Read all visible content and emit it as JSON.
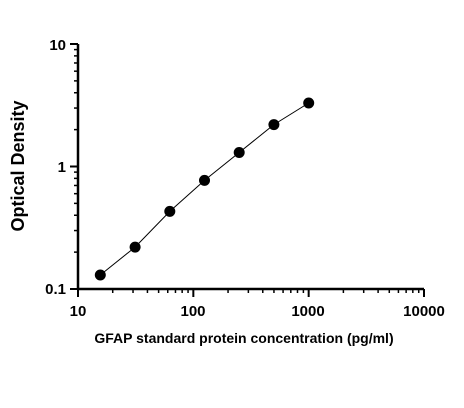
{
  "chart_data": {
    "type": "scatter",
    "title": "",
    "xlabel": "GFAP standard protein concentration (pg/ml)",
    "ylabel": "Optical Density",
    "x_scale": "log",
    "y_scale": "log",
    "xlim": [
      10,
      10000
    ],
    "ylim": [
      0.1,
      10
    ],
    "x_ticks": [
      "10",
      "100",
      "1000",
      "10000"
    ],
    "y_ticks": [
      "0.1",
      "1",
      "10"
    ],
    "grid": false,
    "legend": "none",
    "connect_points": true,
    "marker_color": "#000000",
    "line_color": "#000000",
    "series": [
      {
        "x": [
          15.6,
          31.25,
          62.5,
          125,
          250,
          500,
          1000
        ],
        "y": [
          0.13,
          0.22,
          0.43,
          0.77,
          1.3,
          2.2,
          3.3
        ]
      }
    ]
  }
}
